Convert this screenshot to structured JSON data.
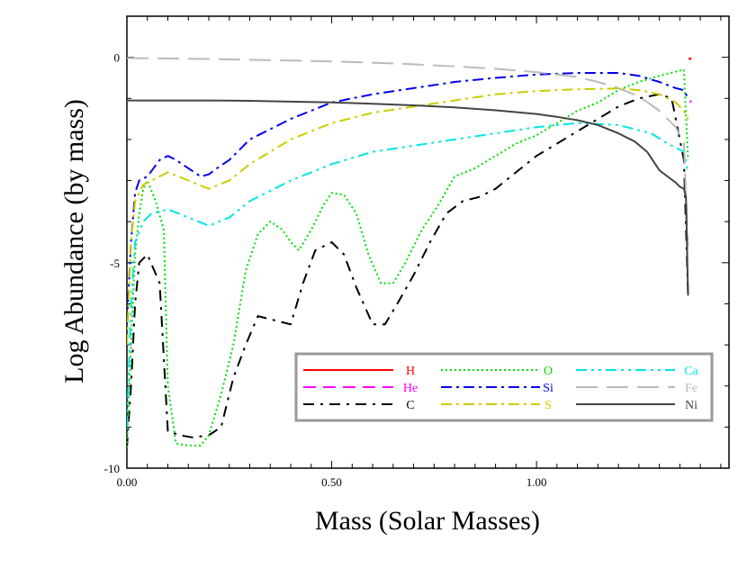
{
  "chart_data": {
    "type": "line",
    "xlabel": "Mass (Solar Masses)",
    "ylabel": "Log Abundance (by mass)",
    "xlim": [
      0,
      1.47
    ],
    "ylim": [
      -10,
      1
    ],
    "x_ticks": [
      {
        "value": 0.0,
        "label": "0.00"
      },
      {
        "value": 0.5,
        "label": "0.50"
      },
      {
        "value": 1.0,
        "label": "1.00"
      }
    ],
    "y_ticks": [
      {
        "value": 0,
        "label": "0"
      },
      {
        "value": -5,
        "label": "-5"
      },
      {
        "value": -10,
        "label": "-10"
      }
    ],
    "legend_position": "bottom-right",
    "series": [
      {
        "name": "H",
        "color": "#ff0000",
        "dash": "solid",
        "x": [
          1.372,
          1.375,
          1.378
        ],
        "y": [
          -0.05,
          -0.03,
          -0.02
        ]
      },
      {
        "name": "He",
        "color": "#ff00ff",
        "dash": "dash",
        "x": [
          1.375,
          1.378
        ],
        "y": [
          -1.1,
          -1.05
        ]
      },
      {
        "name": "C",
        "color": "#000000",
        "dash": "dashdot-long",
        "x": [
          0.0,
          0.01,
          0.02,
          0.03,
          0.05,
          0.08,
          0.1,
          0.13,
          0.16,
          0.2,
          0.23,
          0.26,
          0.29,
          0.32,
          0.36,
          0.4,
          0.43,
          0.46,
          0.48,
          0.5,
          0.53,
          0.56,
          0.6,
          0.63,
          0.66,
          0.7,
          0.74,
          0.78,
          0.82,
          0.86,
          0.9,
          0.95,
          1.0,
          1.05,
          1.1,
          1.15,
          1.2,
          1.25,
          1.3,
          1.33,
          1.36,
          1.37
        ],
        "y": [
          -9.5,
          -8.0,
          -6.0,
          -5.0,
          -4.8,
          -5.5,
          -9.1,
          -9.2,
          -9.25,
          -9.2,
          -9.0,
          -7.8,
          -7.0,
          -6.3,
          -6.4,
          -6.5,
          -5.5,
          -4.7,
          -4.6,
          -4.5,
          -4.8,
          -5.6,
          -6.5,
          -6.5,
          -6.0,
          -5.3,
          -4.5,
          -3.8,
          -3.5,
          -3.4,
          -3.2,
          -2.8,
          -2.4,
          -2.1,
          -1.8,
          -1.5,
          -1.2,
          -1.0,
          -0.9,
          -1.0,
          -2.5,
          -5.8
        ]
      },
      {
        "name": "O",
        "color": "#00dd00",
        "dash": "dot",
        "x": [
          0.0,
          0.01,
          0.02,
          0.03,
          0.04,
          0.05,
          0.07,
          0.09,
          0.1,
          0.12,
          0.15,
          0.18,
          0.2,
          0.23,
          0.26,
          0.29,
          0.32,
          0.35,
          0.38,
          0.4,
          0.42,
          0.45,
          0.48,
          0.5,
          0.53,
          0.56,
          0.59,
          0.62,
          0.65,
          0.68,
          0.72,
          0.76,
          0.8,
          0.85,
          0.9,
          0.95,
          1.0,
          1.05,
          1.1,
          1.15,
          1.2,
          1.25,
          1.3,
          1.34,
          1.36,
          1.37
        ],
        "y": [
          -9.5,
          -7.0,
          -4.8,
          -3.8,
          -3.2,
          -3.0,
          -3.5,
          -4.2,
          -8.0,
          -9.4,
          -9.45,
          -9.45,
          -9.2,
          -8.2,
          -7.0,
          -5.2,
          -4.3,
          -4.0,
          -4.2,
          -4.5,
          -4.7,
          -4.2,
          -3.6,
          -3.3,
          -3.35,
          -3.8,
          -4.8,
          -5.5,
          -5.5,
          -5.0,
          -4.2,
          -3.6,
          -2.9,
          -2.7,
          -2.4,
          -2.1,
          -1.9,
          -1.6,
          -1.3,
          -1.1,
          -0.8,
          -0.6,
          -0.45,
          -0.35,
          -0.3,
          -2.5
        ]
      },
      {
        "name": "Ca",
        "color": "#00e5e5",
        "dash": "dashdotdot",
        "x": [
          0.0,
          0.01,
          0.02,
          0.04,
          0.06,
          0.1,
          0.15,
          0.2,
          0.25,
          0.3,
          0.4,
          0.5,
          0.6,
          0.7,
          0.8,
          0.9,
          1.0,
          1.1,
          1.2,
          1.28,
          1.32,
          1.36,
          1.37
        ],
        "y": [
          -9.0,
          -6.0,
          -4.5,
          -4.0,
          -3.8,
          -3.7,
          -3.9,
          -4.1,
          -3.9,
          -3.5,
          -3.0,
          -2.6,
          -2.3,
          -2.15,
          -2.0,
          -1.85,
          -1.7,
          -1.6,
          -1.65,
          -1.85,
          -2.1,
          -2.3,
          -2.8
        ]
      },
      {
        "name": "Si",
        "color": "#0000ee",
        "dash": "dashdot",
        "x": [
          0.0,
          0.01,
          0.02,
          0.03,
          0.05,
          0.08,
          0.1,
          0.12,
          0.15,
          0.18,
          0.2,
          0.22,
          0.25,
          0.3,
          0.4,
          0.5,
          0.6,
          0.7,
          0.8,
          0.9,
          1.0,
          1.1,
          1.2,
          1.25,
          1.3,
          1.34,
          1.36,
          1.37
        ],
        "y": [
          -6.5,
          -4.5,
          -3.3,
          -3.0,
          -2.9,
          -2.5,
          -2.4,
          -2.5,
          -2.7,
          -2.9,
          -2.85,
          -2.7,
          -2.5,
          -2.0,
          -1.5,
          -1.1,
          -0.9,
          -0.75,
          -0.6,
          -0.5,
          -0.42,
          -0.38,
          -0.38,
          -0.45,
          -0.6,
          -0.75,
          -0.8,
          -1.0
        ]
      },
      {
        "name": "Fe",
        "color": "#bbbbbb",
        "dash": "longdash",
        "x": [
          0.0,
          0.1,
          0.2,
          0.3,
          0.4,
          0.5,
          0.6,
          0.7,
          0.8,
          0.9,
          1.0,
          1.1,
          1.15,
          1.2,
          1.25,
          1.3,
          1.34,
          1.36,
          1.37
        ],
        "y": [
          -0.02,
          -0.03,
          -0.04,
          -0.06,
          -0.08,
          -0.1,
          -0.13,
          -0.17,
          -0.22,
          -0.28,
          -0.36,
          -0.48,
          -0.6,
          -0.75,
          -0.95,
          -1.3,
          -1.7,
          -2.1,
          -4.6
        ]
      },
      {
        "name": "S",
        "color": "#cccc00",
        "dash": "dashdot",
        "x": [
          0.0,
          0.01,
          0.02,
          0.04,
          0.06,
          0.1,
          0.15,
          0.2,
          0.25,
          0.3,
          0.4,
          0.5,
          0.6,
          0.7,
          0.8,
          0.9,
          1.0,
          1.1,
          1.2,
          1.25,
          1.3,
          1.34,
          1.36,
          1.37
        ],
        "y": [
          -7.0,
          -4.5,
          -3.5,
          -3.1,
          -3.0,
          -2.8,
          -3.0,
          -3.2,
          -3.0,
          -2.6,
          -2.0,
          -1.6,
          -1.35,
          -1.2,
          -1.05,
          -0.9,
          -0.82,
          -0.78,
          -0.76,
          -0.8,
          -0.9,
          -1.1,
          -1.3,
          -1.5
        ]
      },
      {
        "name": "Ni",
        "color": "#444444",
        "dash": "solid",
        "x": [
          0.0,
          0.1,
          0.2,
          0.3,
          0.4,
          0.5,
          0.6,
          0.7,
          0.8,
          0.9,
          1.0,
          1.05,
          1.1,
          1.15,
          1.2,
          1.24,
          1.27,
          1.3,
          1.32,
          1.34,
          1.35,
          1.36,
          1.365,
          1.37
        ],
        "y": [
          -1.05,
          -1.05,
          -1.05,
          -1.06,
          -1.08,
          -1.1,
          -1.13,
          -1.17,
          -1.22,
          -1.29,
          -1.38,
          -1.45,
          -1.53,
          -1.65,
          -1.85,
          -2.05,
          -2.3,
          -2.75,
          -2.9,
          -3.05,
          -3.15,
          -3.2,
          -3.4,
          -5.8
        ]
      }
    ],
    "legend": {
      "columns": [
        [
          "H",
          "He",
          "C"
        ],
        [
          "O",
          "Si",
          "S"
        ],
        [
          "Ca",
          "Fe",
          "Ni"
        ]
      ]
    }
  }
}
